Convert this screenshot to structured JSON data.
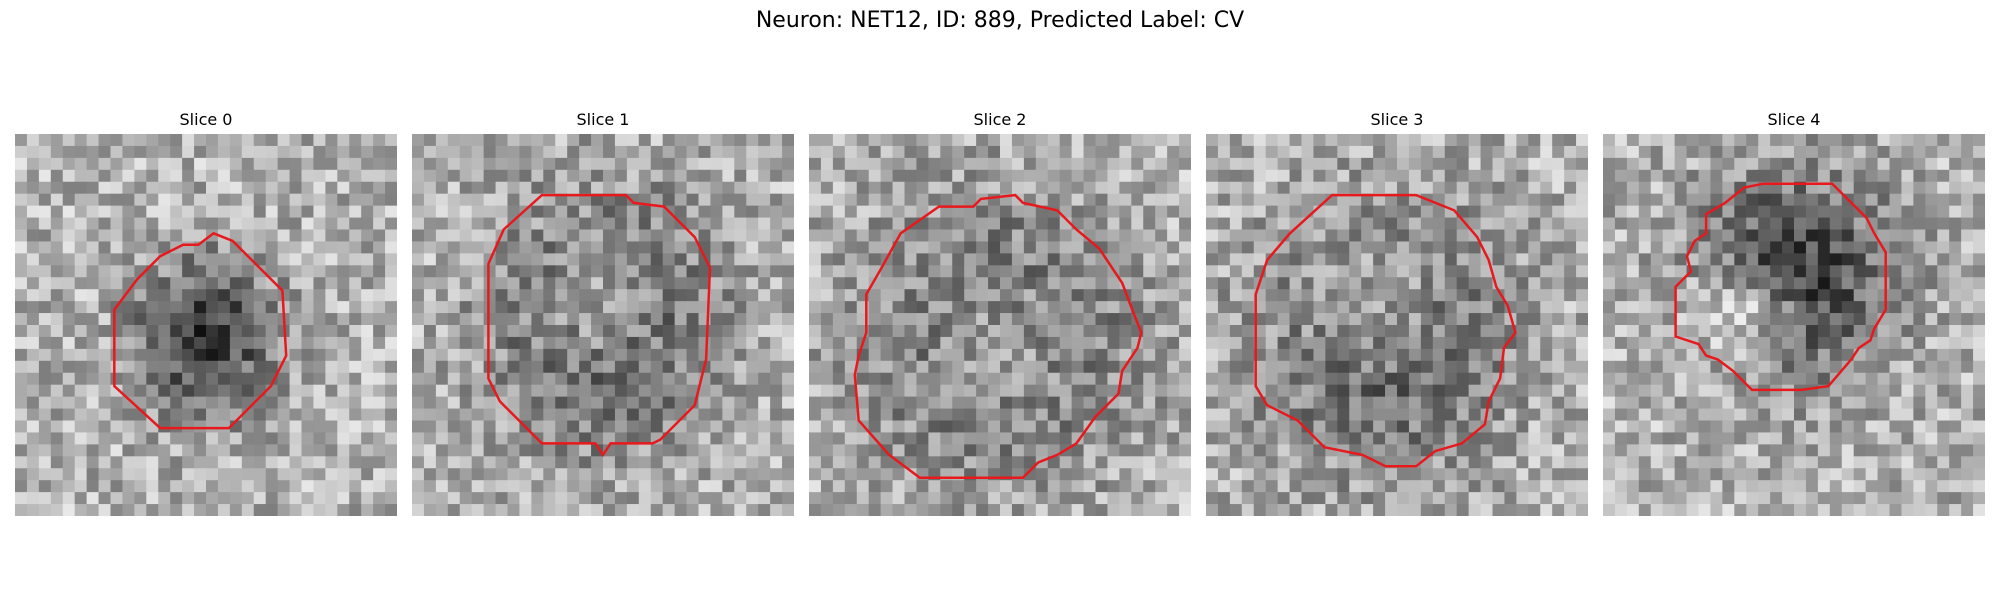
{
  "figure": {
    "title": "Neuron: NET12, ID: 889, Predicted Label: CV"
  },
  "panels": [
    {
      "title": "Slice 0",
      "contour_color": "#e8191d",
      "contour": [
        [
          0.52,
          0.26
        ],
        [
          0.57,
          0.28
        ],
        [
          0.7,
          0.41
        ],
        [
          0.71,
          0.58
        ],
        [
          0.67,
          0.66
        ],
        [
          0.56,
          0.77
        ],
        [
          0.38,
          0.77
        ],
        [
          0.26,
          0.66
        ],
        [
          0.26,
          0.46
        ],
        [
          0.32,
          0.38
        ],
        [
          0.38,
          0.32
        ],
        [
          0.44,
          0.29
        ],
        [
          0.48,
          0.29
        ]
      ],
      "dark_blob": [
        0.5,
        0.53,
        0.2,
        0.22
      ],
      "bright_blob": null
    },
    {
      "title": "Slice 1",
      "contour_color": "#e8191d",
      "contour": [
        [
          0.34,
          0.16
        ],
        [
          0.56,
          0.16
        ],
        [
          0.58,
          0.18
        ],
        [
          0.66,
          0.19
        ],
        [
          0.74,
          0.27
        ],
        [
          0.78,
          0.35
        ],
        [
          0.77,
          0.59
        ],
        [
          0.74,
          0.71
        ],
        [
          0.65,
          0.8
        ],
        [
          0.63,
          0.81
        ],
        [
          0.52,
          0.81
        ],
        [
          0.5,
          0.84
        ],
        [
          0.48,
          0.81
        ],
        [
          0.34,
          0.81
        ],
        [
          0.23,
          0.7
        ],
        [
          0.2,
          0.64
        ],
        [
          0.2,
          0.34
        ],
        [
          0.24,
          0.25
        ]
      ],
      "dark_blob": [
        0.5,
        0.49,
        0.3,
        0.34
      ],
      "bright_blob": [
        0.49,
        0.46,
        0.2,
        0.22
      ]
    },
    {
      "title": "Slice 2",
      "contour_color": "#e8191d",
      "contour": [
        [
          0.34,
          0.19
        ],
        [
          0.43,
          0.19
        ],
        [
          0.45,
          0.17
        ],
        [
          0.54,
          0.16
        ],
        [
          0.56,
          0.18
        ],
        [
          0.65,
          0.2
        ],
        [
          0.7,
          0.25
        ],
        [
          0.76,
          0.3
        ],
        [
          0.82,
          0.39
        ],
        [
          0.85,
          0.47
        ],
        [
          0.87,
          0.52
        ],
        [
          0.86,
          0.56
        ],
        [
          0.82,
          0.62
        ],
        [
          0.81,
          0.68
        ],
        [
          0.75,
          0.74
        ],
        [
          0.7,
          0.81
        ],
        [
          0.65,
          0.84
        ],
        [
          0.6,
          0.86
        ],
        [
          0.56,
          0.9
        ],
        [
          0.29,
          0.9
        ],
        [
          0.21,
          0.84
        ],
        [
          0.13,
          0.75
        ],
        [
          0.12,
          0.63
        ],
        [
          0.13,
          0.58
        ],
        [
          0.15,
          0.52
        ],
        [
          0.15,
          0.42
        ],
        [
          0.19,
          0.35
        ],
        [
          0.24,
          0.26
        ]
      ],
      "dark_blob": [
        0.5,
        0.54,
        0.36,
        0.36
      ],
      "bright_blob": [
        0.5,
        0.55,
        0.26,
        0.26
      ]
    },
    {
      "title": "Slice 3",
      "contour_color": "#e8191d",
      "contour": [
        [
          0.33,
          0.16
        ],
        [
          0.55,
          0.16
        ],
        [
          0.65,
          0.2
        ],
        [
          0.71,
          0.27
        ],
        [
          0.74,
          0.33
        ],
        [
          0.76,
          0.4
        ],
        [
          0.79,
          0.45
        ],
        [
          0.81,
          0.52
        ],
        [
          0.78,
          0.56
        ],
        [
          0.77,
          0.64
        ],
        [
          0.74,
          0.7
        ],
        [
          0.73,
          0.76
        ],
        [
          0.67,
          0.81
        ],
        [
          0.6,
          0.83
        ],
        [
          0.55,
          0.87
        ],
        [
          0.47,
          0.87
        ],
        [
          0.41,
          0.84
        ],
        [
          0.31,
          0.82
        ],
        [
          0.24,
          0.75
        ],
        [
          0.16,
          0.71
        ],
        [
          0.13,
          0.66
        ],
        [
          0.13,
          0.42
        ],
        [
          0.16,
          0.33
        ],
        [
          0.22,
          0.26
        ]
      ],
      "dark_blob": [
        0.46,
        0.52,
        0.33,
        0.36
      ],
      "bright_blob": [
        0.44,
        0.46,
        0.24,
        0.25
      ]
    },
    {
      "title": "Slice 4",
      "contour_color": "#e8191d",
      "contour": [
        [
          0.42,
          0.13
        ],
        [
          0.6,
          0.13
        ],
        [
          0.69,
          0.22
        ],
        [
          0.71,
          0.26
        ],
        [
          0.74,
          0.31
        ],
        [
          0.74,
          0.46
        ],
        [
          0.71,
          0.51
        ],
        [
          0.7,
          0.54
        ],
        [
          0.67,
          0.56
        ],
        [
          0.65,
          0.59
        ],
        [
          0.59,
          0.66
        ],
        [
          0.52,
          0.67
        ],
        [
          0.39,
          0.67
        ],
        [
          0.34,
          0.62
        ],
        [
          0.3,
          0.59
        ],
        [
          0.27,
          0.58
        ],
        [
          0.25,
          0.55
        ],
        [
          0.19,
          0.53
        ],
        [
          0.19,
          0.4
        ],
        [
          0.23,
          0.36
        ],
        [
          0.22,
          0.32
        ],
        [
          0.24,
          0.28
        ],
        [
          0.27,
          0.26
        ],
        [
          0.27,
          0.21
        ],
        [
          0.32,
          0.18
        ],
        [
          0.37,
          0.14
        ]
      ],
      "dark_blob": [
        0.5,
        0.38,
        0.28,
        0.3
      ],
      "bright_blob": [
        0.37,
        0.47,
        0.18,
        0.14
      ]
    }
  ]
}
